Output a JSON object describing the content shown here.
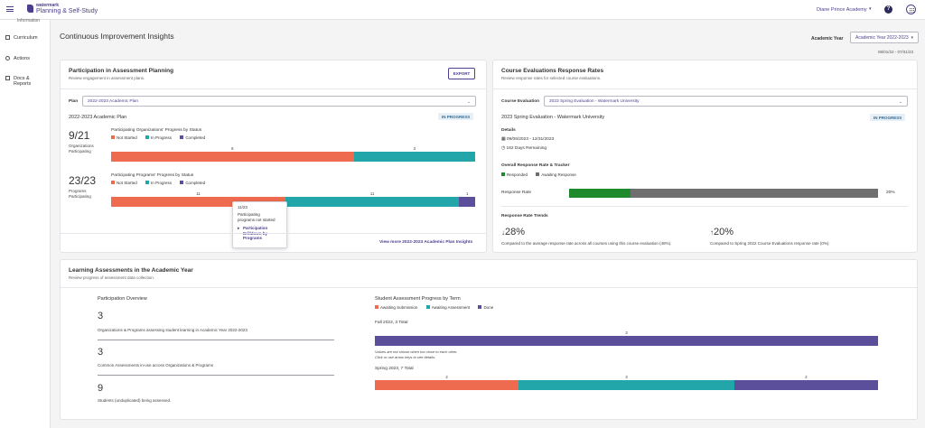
{
  "header": {
    "logo_top": "watermark",
    "logo_name": "Planning & Self-Study",
    "institution": "Diane Prince Academy",
    "help_icon": "question-circle-icon",
    "apps_icon": "app-grid-icon"
  },
  "sidebar": {
    "cut_item": "Information",
    "items": [
      {
        "label": "Curriculum",
        "icon": "book-icon"
      },
      {
        "label": "Actions",
        "icon": "target-icon"
      },
      {
        "label": "Docs &",
        "label2": "Reports",
        "icon": "document-icon"
      }
    ]
  },
  "page": {
    "title": "Continuous Improvement Insights",
    "year_label": "Academic Year",
    "year_value": "Academic Year 2022-2023",
    "year_dates": "08/01/22 - 07/31/23"
  },
  "participation": {
    "title": "Participation in Assessment Planning",
    "subtitle": "Review engagement in assessment plans.",
    "export": "EXPORT",
    "plan_label": "Plan",
    "plan_value": "2022-2023 Academic Plan",
    "plan_heading": "2022-2023 Academic Plan",
    "status": "IN PROGRESS",
    "org_count": "9/21",
    "org_label1": "Organizations",
    "org_label2": "Participating",
    "org_chart_title": "Participating Organizations' Progress by Status",
    "prog_count": "23/23",
    "prog_label1": "Programs",
    "prog_label2": "Participating",
    "prog_chart_title": "Participating Programs' Progress by Status",
    "legend": [
      "Not Started",
      "In Progress",
      "Completed"
    ],
    "colors": {
      "not_started": "#ef6b50",
      "in_progress": "#23a6aa",
      "completed": "#5b4f9c"
    },
    "tooltip": {
      "count": "11/23",
      "text1": "Participating",
      "text2": "programs not started",
      "link1": "Participation",
      "link2": "Drilldown by",
      "link3": "Programs"
    },
    "view_more": "View more 2022-2023 Academic Plan Insights"
  },
  "course_eval": {
    "title": "Course Evaluations Response Rates",
    "subtitle": "Review response rates for selected course evaluations.",
    "select_label": "Course Evaluation",
    "select_value": "2023 Spring Evaluation - Watermark University",
    "heading": "2023 Spring Evaluation - Watermark University",
    "status": "IN PROGRESS",
    "details_label": "Details",
    "dates": "09/06/2023 - 12/31/2023",
    "remaining": "162 Days Remaining",
    "tracker_title": "Overall Response Rate & Tracker",
    "legend": [
      "Responded",
      "Awaiting Response"
    ],
    "rate_label": "Response Rate",
    "rate_value": "20%",
    "colors": {
      "responded": "#1f8a2c",
      "awaiting": "#6f6f6f"
    },
    "trends_title": "Response Rate Trends",
    "trend1_value": "28%",
    "trend1_arrow": "↓",
    "trend1_text": "Compared to the average response rate across all courses using this course evaluation (48%).",
    "trend2_value": "20%",
    "trend2_arrow": "↑",
    "trend2_text": "Compared to Spring 2022 Course Evaluations response rate (0%)."
  },
  "learning": {
    "title": "Learning Assessments in the Academic Year",
    "subtitle": "Review progress of assessment data collection.",
    "overview_title": "Participation Overview",
    "stat1_value": "3",
    "stat1_text": "Organizations & Programs assessing student learning in Academic Year 2022-2023",
    "stat2_value": "3",
    "stat2_text": "Common Assessments in-use across Organizations & Programs",
    "stat3_value": "9",
    "stat3_text": "Students (unduplicated) being assessed.",
    "chart_title": "Student Assessment Progress by Term",
    "legend": [
      "Awaiting Submission",
      "Awaiting Assessment",
      "Done"
    ],
    "colors": {
      "awaiting_submission": "#ef6b50",
      "awaiting_assessment": "#23a6aa",
      "done": "#5b4f9c"
    },
    "term1_label": "Fall 2022, 3 Total",
    "term1_note1": "Values are not shown when too close to each other.",
    "term1_note2": "Click or use arrow keys to see details.",
    "term2_label": "Spring 2023, 7 Total"
  },
  "chart_data": [
    {
      "type": "bar",
      "title": "Participating Organizations' Progress by Status",
      "categories": [
        "Organizations"
      ],
      "series": [
        {
          "name": "Not Started",
          "values": [
            6
          ]
        },
        {
          "name": "In Progress",
          "values": [
            3
          ]
        },
        {
          "name": "Completed",
          "values": [
            0
          ]
        }
      ]
    },
    {
      "type": "bar",
      "title": "Participating Programs' Progress by Status",
      "categories": [
        "Programs"
      ],
      "series": [
        {
          "name": "Not Started",
          "values": [
            11
          ]
        },
        {
          "name": "In Progress",
          "values": [
            11
          ]
        },
        {
          "name": "Completed",
          "values": [
            1
          ]
        }
      ]
    },
    {
      "type": "bar",
      "title": "Overall Response Rate & Tracker",
      "categories": [
        "Response Rate"
      ],
      "series": [
        {
          "name": "Responded",
          "values": [
            20
          ]
        },
        {
          "name": "Awaiting Response",
          "values": [
            80
          ]
        }
      ]
    },
    {
      "type": "bar",
      "title": "Student Assessment Progress by Term",
      "categories": [
        "Fall 2022, 3 Total",
        "Spring 2023, 7 Total"
      ],
      "series": [
        {
          "name": "Awaiting Submission",
          "values": [
            0,
            2
          ]
        },
        {
          "name": "Awaiting Assessment",
          "values": [
            0,
            3
          ]
        },
        {
          "name": "Done",
          "values": [
            3,
            2
          ]
        }
      ]
    }
  ]
}
